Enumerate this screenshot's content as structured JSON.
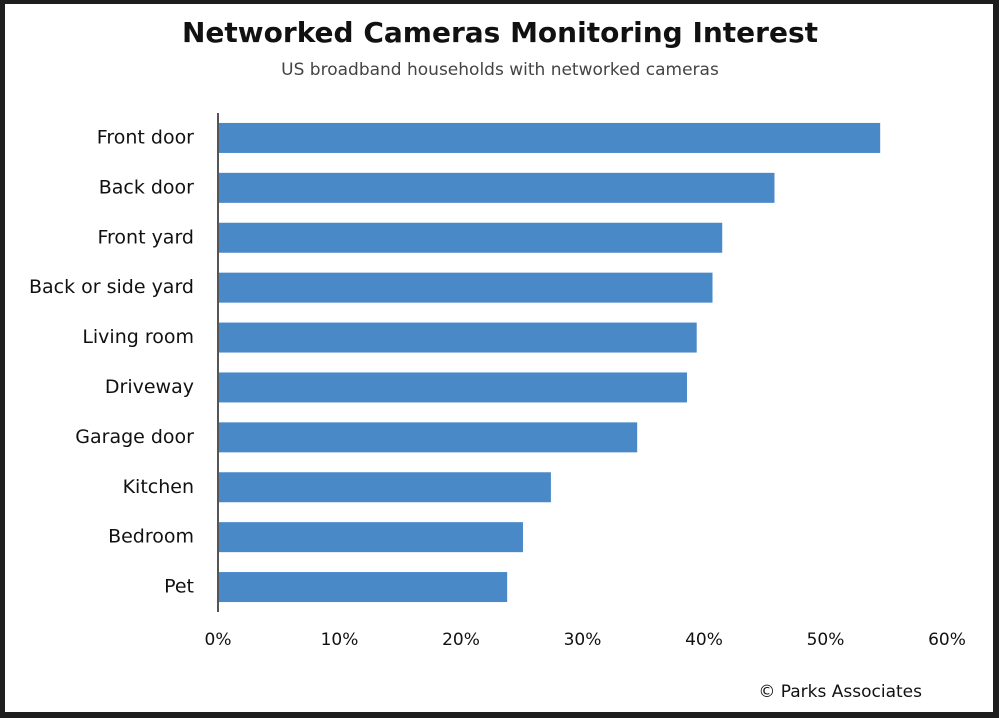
{
  "chart_data": {
    "type": "bar",
    "orientation": "horizontal",
    "title": "Networked Cameras Monitoring Interest",
    "subtitle": "US broadband households with networked cameras",
    "source": "© Parks Associates",
    "categories": [
      "Front door",
      "Back door",
      "Front yard",
      "Back or side yard",
      "Living room",
      "Driveway",
      "Garage door",
      "Kitchen",
      "Bedroom",
      "Pet"
    ],
    "values": [
      54.5,
      45.8,
      41.5,
      40.7,
      39.4,
      38.6,
      34.5,
      27.4,
      25.1,
      23.8
    ],
    "color": "#4a89c8",
    "xlim": [
      0,
      60
    ],
    "xticks": [
      {
        "value": 0,
        "label": "0%"
      },
      {
        "value": 10,
        "label": "10%"
      },
      {
        "value": 20,
        "label": "20%"
      },
      {
        "value": 30,
        "label": "30%"
      },
      {
        "value": 40,
        "label": "40%"
      },
      {
        "value": 50,
        "label": "50%"
      },
      {
        "value": 60,
        "label": "60%"
      }
    ],
    "grid": false
  }
}
